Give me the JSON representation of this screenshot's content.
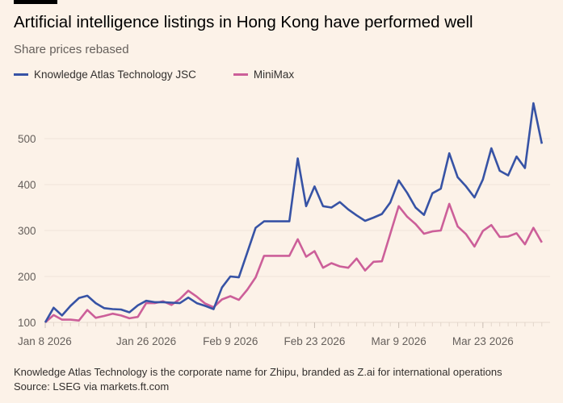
{
  "title": "Artificial intelligence listings in Hong Kong have performed well",
  "subtitle": "Share prices rebased",
  "footer": {
    "note": "Knowledge Atlas Technology is the corporate name for Zhipu, branded as Z.ai for international operations",
    "source": "Source: LSEG via markets.ft.com"
  },
  "chart_data": {
    "type": "line",
    "title": "Artificial intelligence listings in Hong Kong have performed well",
    "subtitle": "Share prices rebased",
    "xlabel": "",
    "ylabel": "",
    "ylim": [
      100,
      580
    ],
    "yticks": [
      100,
      200,
      300,
      400,
      500
    ],
    "x_is_trading_day_index": true,
    "xticks": [
      {
        "index": 0,
        "label": "Jan 8 2026"
      },
      {
        "index": 12,
        "label": "Jan 26 2026"
      },
      {
        "index": 22,
        "label": "Feb 9 2026"
      },
      {
        "index": 32,
        "label": "Feb 23 2026"
      },
      {
        "index": 42,
        "label": "Mar 9 2026"
      },
      {
        "index": 52,
        "label": "Mar 23 2026"
      }
    ],
    "grid": true,
    "legend_position": "top-left",
    "series": [
      {
        "name": "Knowledge Atlas Technology JSC",
        "color": "#3753a5",
        "values": [
          100,
          132,
          115,
          136,
          153,
          158,
          142,
          131,
          129,
          128,
          122,
          137,
          147,
          144,
          144,
          143,
          142,
          154,
          142,
          136,
          129,
          176,
          200,
          198,
          252,
          306,
          320,
          320,
          320,
          320,
          457,
          353,
          396,
          353,
          350,
          362,
          346,
          333,
          321,
          328,
          336,
          361,
          409,
          382,
          350,
          334,
          381,
          391,
          468,
          416,
          396,
          372,
          411,
          479,
          430,
          420,
          461,
          436,
          577,
          489
        ]
      },
      {
        "name": "MiniMax",
        "color": "#cc5f99",
        "values": [
          100,
          116,
          106,
          106,
          104,
          127,
          110,
          114,
          119,
          115,
          109,
          112,
          142,
          142,
          146,
          138,
          151,
          169,
          156,
          141,
          133,
          150,
          157,
          149,
          171,
          198,
          245,
          245,
          245,
          245,
          281,
          243,
          255,
          219,
          229,
          222,
          219,
          239,
          213,
          232,
          233,
          293,
          353,
          330,
          314,
          293,
          298,
          300,
          358,
          309,
          292,
          265,
          299,
          312,
          286,
          287,
          294,
          270,
          306,
          274
        ]
      }
    ]
  }
}
